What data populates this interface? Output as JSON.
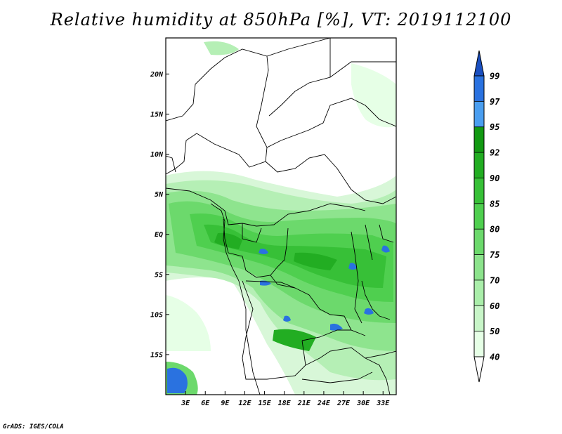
{
  "title": "Relative humidity at 850hPa [%], VT: 2019112100",
  "credit": "GrADS: IGES/COLA",
  "map": {
    "region": "Central Africa",
    "projection": "latitude-longitude",
    "lon_range": [
      0,
      35
    ],
    "lat_range": [
      -20,
      24.5
    ],
    "lat_ticks": [
      {
        "value": 20,
        "label": "20N"
      },
      {
        "value": 15,
        "label": "15N"
      },
      {
        "value": 10,
        "label": "10N"
      },
      {
        "value": 5,
        "label": "5N"
      },
      {
        "value": 0,
        "label": "EQ"
      },
      {
        "value": -5,
        "label": "5S"
      },
      {
        "value": -10,
        "label": "10S"
      },
      {
        "value": -15,
        "label": "15S"
      }
    ],
    "lon_ticks": [
      {
        "value": 3,
        "label": "3E"
      },
      {
        "value": 6,
        "label": "6E"
      },
      {
        "value": 9,
        "label": "9E"
      },
      {
        "value": 12,
        "label": "12E"
      },
      {
        "value": 15,
        "label": "15E"
      },
      {
        "value": 18,
        "label": "18E"
      },
      {
        "value": 21,
        "label": "21E"
      },
      {
        "value": 24,
        "label": "24E"
      },
      {
        "value": 27,
        "label": "27E"
      },
      {
        "value": 30,
        "label": "30E"
      },
      {
        "value": 33,
        "label": "33E"
      }
    ]
  },
  "colorbar": {
    "levels": [
      {
        "label": "40",
        "color": "#e6ffe6"
      },
      {
        "label": "50",
        "color": "#c8f5c8"
      },
      {
        "label": "60",
        "color": "#aaeeaa"
      },
      {
        "label": "70",
        "color": "#8ce38c"
      },
      {
        "label": "75",
        "color": "#6cd96c"
      },
      {
        "label": "80",
        "color": "#4fcf4f"
      },
      {
        "label": "85",
        "color": "#37c037"
      },
      {
        "label": "90",
        "color": "#22ad22"
      },
      {
        "label": "92",
        "color": "#129912"
      },
      {
        "label": "95",
        "color": "#4a9ef0"
      },
      {
        "label": "97",
        "color": "#2a72e0"
      },
      {
        "label": "99",
        "color": "#1a4fc0"
      }
    ],
    "low_color": "#ffffff",
    "high_color": "#1a4fc0"
  },
  "colors": {
    "land_border": "#000000",
    "background": "#ffffff"
  }
}
